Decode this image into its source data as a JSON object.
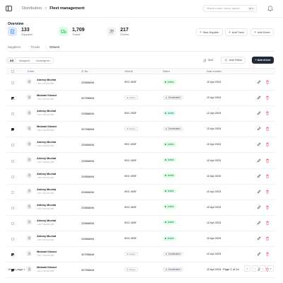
{
  "breadcrumb": {
    "root": "Distribution",
    "separator": ">",
    "current": "Fleet management"
  },
  "search": {
    "placeholder": "Search trucks, orders, agents",
    "shortcut": "⌘ K"
  },
  "overview": {
    "title": "Overview",
    "stats": [
      {
        "value": "133",
        "label": "Suppliers",
        "icon": "file-icon",
        "color": "#3b82f6"
      },
      {
        "value": "1,709",
        "label": "Trucks",
        "icon": "truck-icon",
        "color": "#22c55e"
      },
      {
        "value": "217",
        "label": "Drivers",
        "icon": "users-icon",
        "color": "#6b7280"
      }
    ],
    "actions": [
      "New Supplier",
      "Add Truck",
      "Add Driver"
    ]
  },
  "tabs": [
    "Suppliers",
    "Trucks",
    "Drivers"
  ],
  "active_tab": "Drivers",
  "filters": {
    "segments": [
      "All",
      "Assigned",
      "Unassigned"
    ],
    "sort": "Sort",
    "add_filters": "Add Filters",
    "add_driver": "+ Add driver"
  },
  "table": {
    "columns": [
      "Driver",
      "ID No.",
      "Vehicle",
      "Status",
      "Date created"
    ],
    "rows": [
      {
        "checked": false,
        "name": "Antony Muchai",
        "phone": "+254 718 001 866",
        "id": "20556656",
        "vehicle": "KDC 453F",
        "assign": false,
        "status": "Active",
        "date": "12 Apr 2024"
      },
      {
        "checked": true,
        "name": "Mukami Kimani",
        "phone": "+254 718 001 866",
        "id": "30755668",
        "vehicle": "",
        "assign": true,
        "status": "Deactivated",
        "date": "12 Apr 2024"
      },
      {
        "checked": false,
        "name": "Antony Muchai",
        "phone": "+254 718 001 866",
        "id": "20556656",
        "vehicle": "KDC 453F",
        "assign": false,
        "status": "Active",
        "date": "12 Apr 2024"
      },
      {
        "checked": true,
        "name": "Mukami Kimani",
        "phone": "+254 718 001 866",
        "id": "30755668",
        "vehicle": "",
        "assign": true,
        "status": "Deactivated",
        "date": "12 Apr 2024"
      },
      {
        "checked": false,
        "name": "Antony Muchai",
        "phone": "+254 718 001 866",
        "id": "20556656",
        "vehicle": "KDC 453F",
        "assign": false,
        "status": "Active",
        "date": "12 Apr 2024"
      },
      {
        "checked": false,
        "name": "Antony Muchai",
        "phone": "+254 718 001 866",
        "id": "20556656",
        "vehicle": "KDC 453F",
        "assign": false,
        "status": "Active",
        "date": "12 Apr 2024"
      },
      {
        "checked": false,
        "name": "Antony Muchai",
        "phone": "+254 718 001 866",
        "id": "20556656",
        "vehicle": "KDC 453F",
        "assign": false,
        "status": "Active",
        "date": "12 Apr 2024"
      },
      {
        "checked": false,
        "name": "Antony Muchai",
        "phone": "+254 718 001 866",
        "id": "20556656",
        "vehicle": "KDC 453F",
        "assign": false,
        "status": "Active",
        "date": "12 Apr 2024"
      },
      {
        "checked": false,
        "name": "Antony Muchai",
        "phone": "+254 718 001 866",
        "id": "20556656",
        "vehicle": "KDC 453F",
        "assign": false,
        "status": "Active",
        "date": "12 Apr 2024"
      },
      {
        "checked": false,
        "name": "Antony Muchai",
        "phone": "+254 718 001 866",
        "id": "20556656",
        "vehicle": "KDC 453F",
        "assign": false,
        "status": "Active",
        "date": "12 Apr 2024"
      },
      {
        "checked": false,
        "name": "Antony Muchai",
        "phone": "+254 718 001 866",
        "id": "20556656",
        "vehicle": "KDC 453F",
        "assign": false,
        "status": "Active",
        "date": "12 Apr 2024"
      },
      {
        "checked": true,
        "name": "Mukami Kimani",
        "phone": "+254 718 001 866",
        "id": "30755668",
        "vehicle": "",
        "assign": true,
        "status": "Deactivated",
        "date": "12 Apr 2024"
      },
      {
        "checked": true,
        "name": "Mukami Kimani",
        "phone": "+254 718 001 866",
        "id": "30755668",
        "vehicle": "",
        "assign": true,
        "status": "Deactivated",
        "date": "12 Apr 2024"
      }
    ],
    "assign_label": "Assign"
  },
  "pagination": {
    "per_page": "15 per page",
    "page_info": "Page 1 of 24"
  }
}
